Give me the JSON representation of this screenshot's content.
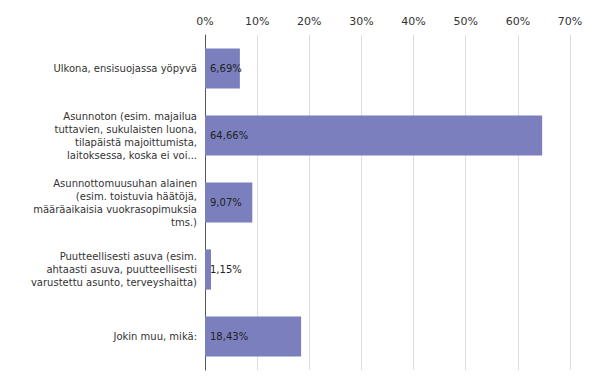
{
  "chart_data": {
    "type": "bar",
    "orientation": "horizontal",
    "categories": [
      "Ulkona, ensisuojassa yöpyvä",
      "Asunnoton (esim. majailua\ntuttavien, sukulaisten luona,\ntilapäistä majoittumista,\nlaitoksessa, koska ei voi...",
      "Asunnottomuusuhan alainen\n(esim. toistuvia häätöjä,\nmääräaikaisia vuokrasopimuksia\ntms.)",
      "Puutteellisesti asuva (esim.\nahtaasti asuva, puutteellisesti\nvarustettu asunto, terveyshaitta)",
      "Jokin muu, mikä:"
    ],
    "values": [
      6.69,
      64.66,
      9.07,
      1.15,
      18.43
    ],
    "value_labels": [
      "6,69%",
      "64,66%",
      "9,07%",
      "1,15%",
      "18,43%"
    ],
    "data_labels": true,
    "color": "#7b7fbe",
    "xlim": [
      0,
      70
    ],
    "xticks": [
      {
        "value": 0,
        "label": "0%"
      },
      {
        "value": 10,
        "label": "10%"
      },
      {
        "value": 20,
        "label": "20%"
      },
      {
        "value": 30,
        "label": "30%"
      },
      {
        "value": 40,
        "label": "40%"
      },
      {
        "value": 50,
        "label": "50%"
      },
      {
        "value": 60,
        "label": "60%"
      },
      {
        "value": 70,
        "label": "70%"
      }
    ],
    "grid": true
  }
}
